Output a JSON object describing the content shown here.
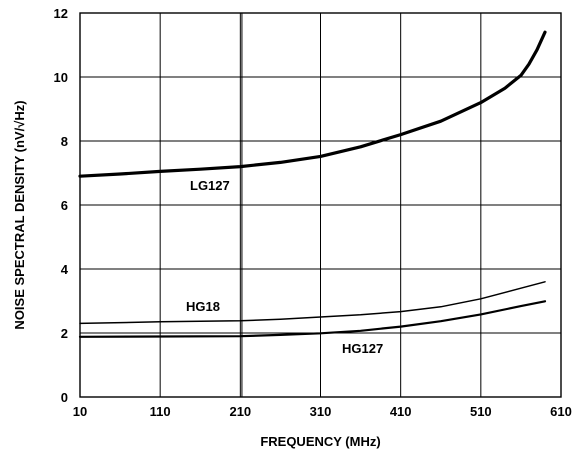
{
  "chart_data": {
    "type": "line",
    "xlabel": "FREQUENCY (MHz)",
    "ylabel": "NOISE SPECTRAL DENSITY (nV/√Hz)",
    "xlim": [
      10,
      610
    ],
    "ylim": [
      0,
      12
    ],
    "x_ticks": [
      "10",
      "110",
      "210",
      "310",
      "410",
      "510",
      "610"
    ],
    "y_ticks": [
      "0",
      "2",
      "4",
      "6",
      "8",
      "10",
      "12"
    ],
    "grid": true,
    "series": [
      {
        "name": "LG127",
        "stroke": "heavy",
        "points": [
          [
            10,
            6.9
          ],
          [
            60,
            6.97
          ],
          [
            110,
            7.05
          ],
          [
            160,
            7.12
          ],
          [
            210,
            7.2
          ],
          [
            260,
            7.33
          ],
          [
            310,
            7.52
          ],
          [
            360,
            7.82
          ],
          [
            410,
            8.2
          ],
          [
            460,
            8.62
          ],
          [
            510,
            9.2
          ],
          [
            540,
            9.65
          ],
          [
            560,
            10.05
          ],
          [
            570,
            10.4
          ],
          [
            580,
            10.85
          ],
          [
            590,
            11.4
          ]
        ]
      },
      {
        "name": "HG18",
        "stroke": "thin",
        "points": [
          [
            10,
            2.3
          ],
          [
            110,
            2.35
          ],
          [
            210,
            2.38
          ],
          [
            260,
            2.43
          ],
          [
            310,
            2.5
          ],
          [
            360,
            2.57
          ],
          [
            410,
            2.67
          ],
          [
            460,
            2.82
          ],
          [
            510,
            3.07
          ],
          [
            560,
            3.4
          ],
          [
            590,
            3.6
          ]
        ]
      },
      {
        "name": "HG127",
        "stroke": "medium",
        "points": [
          [
            10,
            1.88
          ],
          [
            110,
            1.89
          ],
          [
            210,
            1.9
          ],
          [
            260,
            1.94
          ],
          [
            310,
            1.99
          ],
          [
            360,
            2.07
          ],
          [
            410,
            2.2
          ],
          [
            460,
            2.37
          ],
          [
            510,
            2.58
          ],
          [
            560,
            2.84
          ],
          [
            590,
            2.99
          ]
        ]
      }
    ]
  }
}
